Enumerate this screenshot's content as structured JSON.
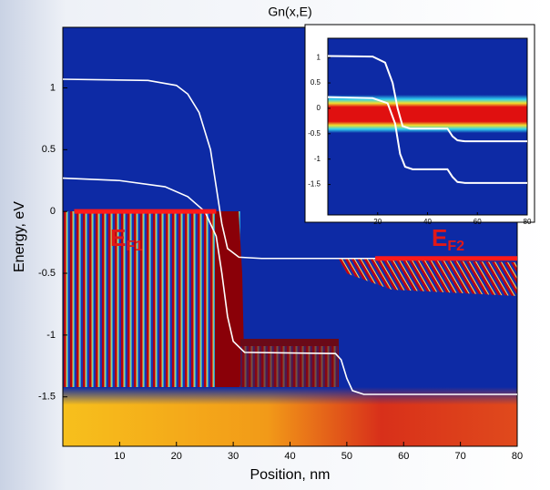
{
  "chart_data": [
    {
      "type": "line",
      "title": "Gn(x,E)",
      "x_label": "Position, nm",
      "y_label": "Energy, eV",
      "xlim": [
        0,
        80
      ],
      "ylim": [
        -1.9,
        1.49
      ],
      "xticks": [
        10,
        20,
        30,
        40,
        50,
        60,
        70,
        80
      ],
      "yticks": [
        -1.5,
        -1,
        -0.5,
        0,
        0.5,
        1
      ],
      "annotations": [
        {
          "text": "E",
          "sub": "F1"
        },
        {
          "text": "E",
          "sub": "F2"
        }
      ],
      "series": [
        {
          "color": "#ffffff",
          "x": [
            0,
            15,
            20,
            22,
            24,
            26,
            27,
            28,
            29,
            31,
            35,
            80
          ],
          "values": [
            1.07,
            1.06,
            1.02,
            0.95,
            0.8,
            0.5,
            0.2,
            -0.1,
            -0.3,
            -0.37,
            -0.38,
            -0.38
          ]
        },
        {
          "color": "#ffffff",
          "x": [
            0,
            10,
            18,
            22,
            25,
            27,
            28,
            29,
            30,
            32,
            48,
            49,
            50,
            51,
            53,
            80
          ],
          "values": [
            0.27,
            0.25,
            0.2,
            0.12,
            0,
            -0.2,
            -0.5,
            -0.85,
            -1.05,
            -1.14,
            -1.15,
            -1.2,
            -1.35,
            -1.45,
            -1.48,
            -1.48
          ]
        },
        {
          "color": "#ff1a1a",
          "x": [
            2,
            27
          ],
          "values": [
            0,
            0
          ]
        },
        {
          "color": "#ff1a1a",
          "x": [
            55,
            80
          ],
          "values": [
            -0.38,
            -0.38
          ]
        }
      ]
    },
    {
      "type": "line",
      "xlim": [
        0,
        80
      ],
      "ylim": [
        -2.1,
        1.38
      ],
      "xticks": [
        20,
        40,
        60,
        80
      ],
      "yticks": [
        -1.5,
        -1,
        -0.5,
        0,
        0.5,
        1
      ],
      "series": [
        {
          "color": "#ffffff",
          "x": [
            0,
            18,
            23,
            26,
            28,
            30,
            33,
            48,
            50,
            52,
            55,
            80
          ],
          "values": [
            1.03,
            1.02,
            0.9,
            0.5,
            0,
            -0.35,
            -0.4,
            -0.4,
            -0.55,
            -0.63,
            -0.65,
            -0.65
          ]
        },
        {
          "color": "#ffffff",
          "x": [
            0,
            18,
            24,
            27,
            29,
            31,
            34,
            48,
            50,
            52,
            55,
            80
          ],
          "values": [
            0.22,
            0.2,
            0.1,
            -0.3,
            -0.9,
            -1.15,
            -1.2,
            -1.2,
            -1.35,
            -1.45,
            -1.47,
            -1.47
          ]
        }
      ]
    }
  ]
}
